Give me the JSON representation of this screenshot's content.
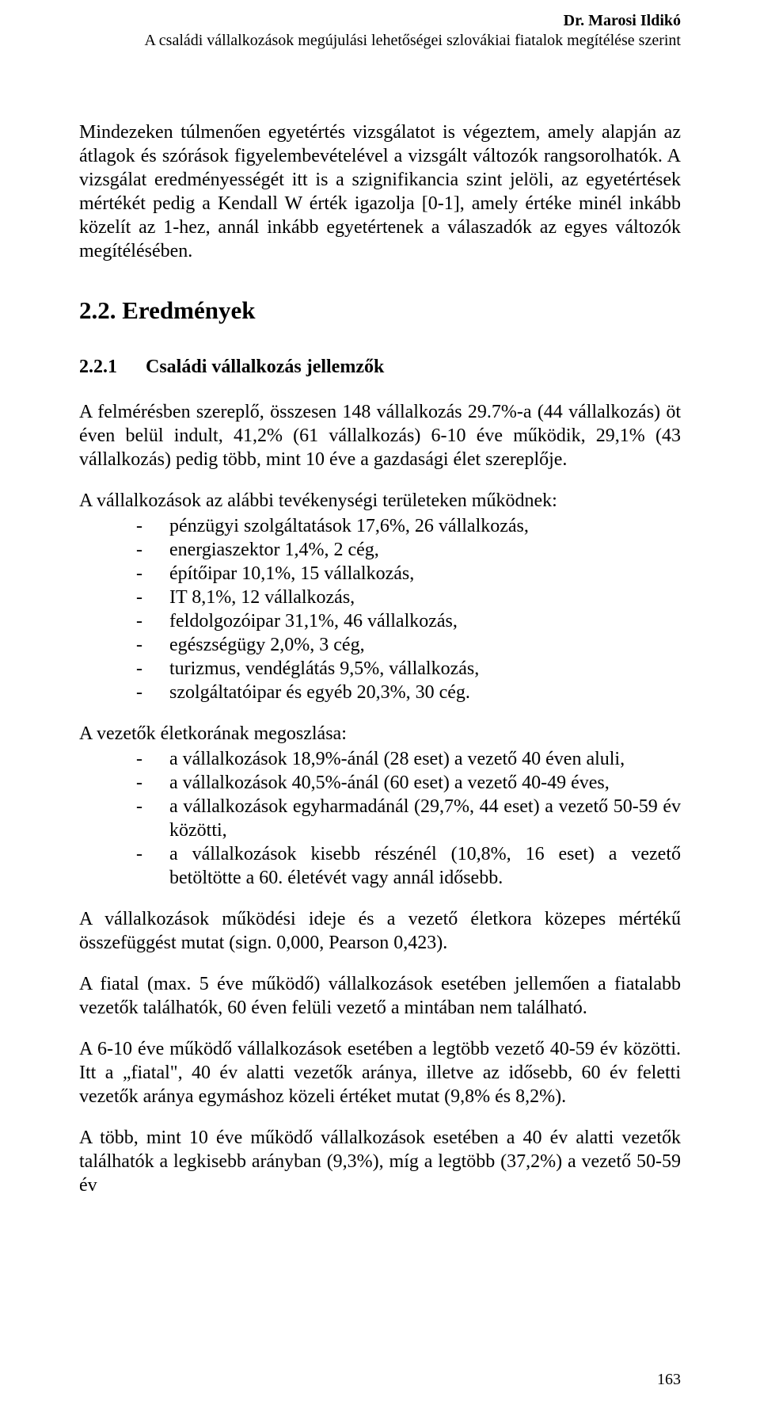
{
  "header": {
    "author": "Dr. Marosi Ildikó",
    "subtitle": "A családi vállalkozások megújulási lehetőségei szlovákiai fiatalok megítélése szerint"
  },
  "para_intro1": "Mindezeken túlmenően egyetértés vizsgálatot is végeztem, amely alapján az átlagok és szórások figyelembevételével a vizsgált változók rangsorolhatók. A vizsgálat eredményességét itt is a szignifikancia szint jelöli, az egyetértések mértékét pedig a Kendall W érték igazolja [0-1], amely értéke minél inkább közelít az 1-hez, annál inkább egyetértenek a válaszadók az egyes változók megítélésében.",
  "section": {
    "number": "2.2.",
    "title": "Eredmények"
  },
  "subsection": {
    "number": "2.2.1",
    "title": "Családi vállalkozás jellemzők"
  },
  "para_stats": "A felmérésben szereplő, összesen 148 vállalkozás 29.7%-a (44 vállalkozás) öt éven belül indult, 41,2% (61 vállalkozás) 6-10 éve működik, 29,1% (43 vállalkozás) pedig több, mint 10 éve a gazdasági élet szereplője.",
  "activities": {
    "intro": "A vállalkozások az alábbi tevékenységi területeken működnek:",
    "items": [
      "pénzügyi szolgáltatások 17,6%, 26 vállalkozás,",
      "energiaszektor 1,4%, 2 cég,",
      "építőipar 10,1%, 15 vállalkozás,",
      "IT 8,1%, 12 vállalkozás,",
      "feldolgozóipar 31,1%, 46 vállalkozás,",
      "egészségügy 2,0%, 3 cég,",
      "turizmus, vendéglátás 9,5%, vállalkozás,",
      "szolgáltatóipar és egyéb 20,3%, 30 cég."
    ]
  },
  "ages": {
    "intro": "A vezetők életkorának megoszlása:",
    "items": [
      "a vállalkozások 18,9%-ánál (28 eset) a vezető 40 éven aluli,",
      "a vállalkozások 40,5%-ánál (60 eset) a vezető 40-49 éves,",
      "a vállalkozások egyharmadánál (29,7%, 44 eset) a vezető 50-59 év közötti,",
      "a vállalkozások kisebb részénél (10,8%, 16 eset) a vezető betöltötte a 60. életévét vagy annál idősebb."
    ]
  },
  "para_corr": "A vállalkozások működési ideje és a vezető életkora közepes mértékű összefüggést mutat (sign. 0,000, Pearson 0,423).",
  "para_young": "A fiatal (max. 5 éve működő) vállalkozások esetében jellemően a fiatalabb vezetők találhatók, 60 éven felüli vezető a mintában nem található.",
  "para_mid": "A 6-10 éve működő vállalkozások esetében a legtöbb vezető 40-59 év közötti. Itt a „fiatal\", 40 év alatti vezetők aránya, illetve az idősebb, 60 év feletti vezetők aránya egymáshoz közeli értéket mutat (9,8% és 8,2%).",
  "para_old": "A több, mint 10 éve működő vállalkozások esetében a 40 év alatti vezetők találhatók a legkisebb arányban (9,3%), míg a legtöbb (37,2%) a vezető 50-59 év",
  "page_number": "163"
}
